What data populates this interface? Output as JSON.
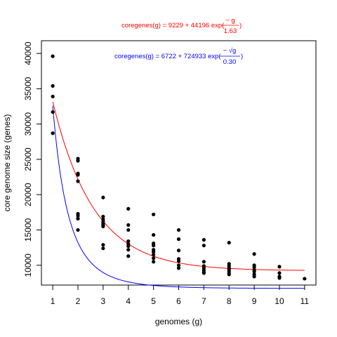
{
  "chart_data": {
    "type": "scatter",
    "title": "",
    "xlabel": "genomes (g)",
    "ylabel": "core genome size (genes)",
    "xlim": [
      0.55,
      11.45
    ],
    "ylim": [
      7200,
      41800
    ],
    "x_ticks": [
      1,
      2,
      3,
      4,
      5,
      6,
      7,
      8,
      9,
      10,
      11
    ],
    "y_ticks": [
      10000,
      15000,
      20000,
      25000,
      30000,
      35000,
      40000
    ],
    "x_tick_labels": [
      "1",
      "2",
      "3",
      "4",
      "5",
      "6",
      "7",
      "8",
      "9",
      "10",
      "11"
    ],
    "y_tick_labels": [
      "10000",
      "15000",
      "20000",
      "25000",
      "30000",
      "35000",
      "40000"
    ],
    "grid": false,
    "legend": "none",
    "points": {
      "color": "#000000",
      "data": [
        [
          1,
          39600
        ],
        [
          1,
          35400
        ],
        [
          1,
          33900
        ],
        [
          1,
          31700
        ],
        [
          1,
          28700
        ],
        [
          2,
          25100
        ],
        [
          2,
          24800
        ],
        [
          2,
          23000
        ],
        [
          2,
          22800
        ],
        [
          2,
          21900
        ],
        [
          2,
          17300
        ],
        [
          2,
          17000
        ],
        [
          2,
          16600
        ],
        [
          2,
          15000
        ],
        [
          3,
          19600
        ],
        [
          3,
          16900
        ],
        [
          3,
          16500
        ],
        [
          3,
          16200
        ],
        [
          3,
          15900
        ],
        [
          3,
          15700
        ],
        [
          3,
          15500
        ],
        [
          3,
          12900
        ],
        [
          3,
          12400
        ],
        [
          4,
          18000
        ],
        [
          4,
          15700
        ],
        [
          4,
          15000
        ],
        [
          4,
          13400
        ],
        [
          4,
          13000
        ],
        [
          4,
          12700
        ],
        [
          4,
          12200
        ],
        [
          4,
          11300
        ],
        [
          5,
          17200
        ],
        [
          5,
          14300
        ],
        [
          5,
          13100
        ],
        [
          5,
          12800
        ],
        [
          5,
          12200
        ],
        [
          5,
          11900
        ],
        [
          5,
          11500
        ],
        [
          5,
          11000
        ],
        [
          5,
          10500
        ],
        [
          6,
          15000
        ],
        [
          6,
          13700
        ],
        [
          6,
          12100
        ],
        [
          6,
          10900
        ],
        [
          6,
          10600
        ],
        [
          6,
          10000
        ],
        [
          6,
          9600
        ],
        [
          7,
          13600
        ],
        [
          7,
          12800
        ],
        [
          7,
          10500
        ],
        [
          7,
          9900
        ],
        [
          7,
          9600
        ],
        [
          7,
          9300
        ],
        [
          7,
          9000
        ],
        [
          7,
          8900
        ],
        [
          8,
          13200
        ],
        [
          8,
          10200
        ],
        [
          8,
          9900
        ],
        [
          8,
          9600
        ],
        [
          8,
          9400
        ],
        [
          8,
          9200
        ],
        [
          8,
          8900
        ],
        [
          8,
          8700
        ],
        [
          9,
          11600
        ],
        [
          9,
          10000
        ],
        [
          9,
          9700
        ],
        [
          9,
          9300
        ],
        [
          9,
          9100
        ],
        [
          9,
          8700
        ],
        [
          9,
          8400
        ],
        [
          10,
          9800
        ],
        [
          10,
          8900
        ],
        [
          10,
          8400
        ],
        [
          10,
          8200
        ],
        [
          11,
          8100
        ]
      ]
    },
    "series": [
      {
        "color": "#ff0000",
        "model": "exp",
        "a": 9229,
        "b": 44196,
        "c": 1.63,
        "equation": {
          "lhs": "coregenes(g) = 9229 + 44196  exp(",
          "num": "− g",
          "den": "1.63",
          "close": ")"
        }
      },
      {
        "color": "#0000ff",
        "model": "exp_sqrt",
        "a": 6722,
        "b": 724933,
        "c": 0.3,
        "equation": {
          "lhs": "coregenes(g) = 6722 + 724933  exp(",
          "num": "− √g",
          "den": "0.30",
          "close": ")"
        }
      }
    ]
  }
}
